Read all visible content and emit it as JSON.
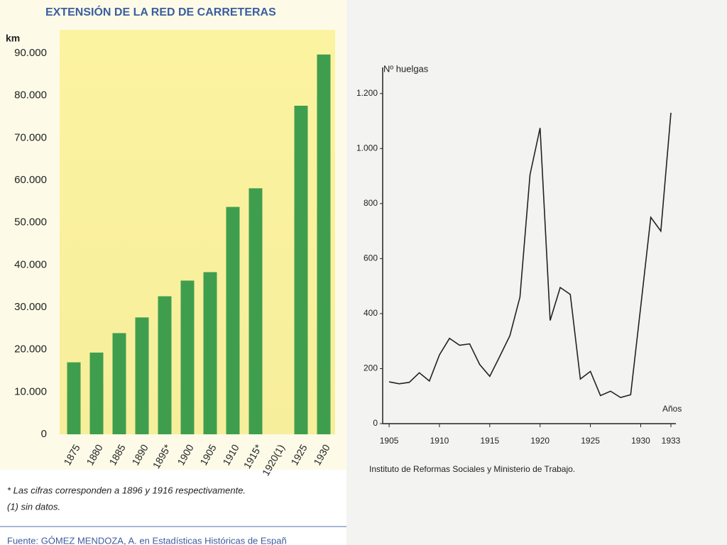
{
  "chart_data": [
    {
      "type": "bar",
      "title": "EXTENSIÓN DE LA RED DE CARRETERAS",
      "y_label": "km",
      "categories": [
        "1875",
        "1880",
        "1885",
        "1890",
        "1895*",
        "1900",
        "1905",
        "1910",
        "1915*",
        "1920(1)",
        "1925",
        "1930"
      ],
      "values": [
        17000,
        19300,
        23900,
        27600,
        32600,
        36300,
        38300,
        53700,
        58100,
        null,
        77600,
        89700
      ],
      "color": "#3f9e4e",
      "ylim": [
        0,
        90000
      ],
      "yticks": [
        0,
        {
          "value": 10000,
          "label": "10.000"
        },
        {
          "value": 20000,
          "label": "20.000"
        },
        {
          "value": 30000,
          "label": "30.000"
        },
        {
          "value": 40000,
          "label": "40.000"
        },
        {
          "value": 50000,
          "label": "50.000"
        },
        {
          "value": 60000,
          "label": "60.000"
        },
        {
          "value": 70000,
          "label": "70.000"
        },
        {
          "value": 80000,
          "label": "80.000"
        },
        {
          "value": 90000,
          "label": "90.000"
        }
      ],
      "notes": [
        "* Las cifras corresponden a 1896 y 1916 respectivamente.",
        "(1) sin datos."
      ],
      "source": "Fuente: GÓMEZ MENDOZA, A. en Estadísticas Históricas de Españ"
    },
    {
      "type": "line",
      "y_label": "Nº huelgas",
      "x_label": "Años",
      "x": [
        1905,
        1906,
        1907,
        1908,
        1909,
        1910,
        1911,
        1912,
        1913,
        1914,
        1915,
        1916,
        1917,
        1918,
        1919,
        1920,
        1921,
        1922,
        1923,
        1924,
        1925,
        1926,
        1927,
        1928,
        1929,
        1930,
        1931,
        1932,
        1933
      ],
      "values": [
        152,
        145,
        150,
        185,
        155,
        250,
        310,
        285,
        290,
        215,
        172,
        245,
        320,
        460,
        905,
        1075,
        375,
        495,
        470,
        162,
        190,
        102,
        118,
        95,
        105,
        425,
        750,
        700,
        1130
      ],
      "color": "#222222",
      "xlim": [
        1904.5,
        1933
      ],
      "xticks": [
        1905,
        1910,
        1915,
        1920,
        1925,
        1930,
        1933
      ],
      "ylim": [
        0,
        1300
      ],
      "yticks": [
        0,
        200,
        400,
        600,
        800,
        {
          "value": 1000,
          "label": "1.000"
        },
        {
          "value": 1200,
          "label": "1.200"
        }
      ],
      "source": "Instituto de Reformas Sociales y Ministerio de Trabajo."
    }
  ]
}
